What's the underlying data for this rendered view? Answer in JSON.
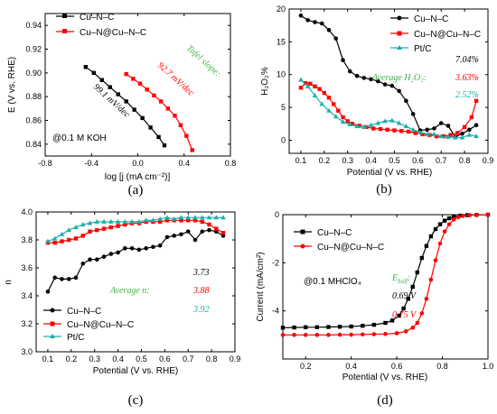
{
  "chart_data": [
    {
      "type": "line",
      "panel": "(a)",
      "xlabel": "log [j (mA cm⁻²)]",
      "ylabel": "E (V vs. RHE)",
      "xlim": [
        -0.8,
        0.8
      ],
      "ylim": [
        0.83,
        0.95
      ],
      "xticks": [
        "-0.8",
        "-0.4",
        "0.0",
        "0.4",
        "0.8"
      ],
      "yticks": [
        "0.84",
        "0.86",
        "0.88",
        "0.90",
        "0.92",
        "0.94"
      ],
      "annotation": "@0.1 M KOH",
      "tafel_label": "Tafel slope:",
      "series": [
        {
          "name": "Cu–N–C",
          "color": "#000000",
          "marker": "square",
          "slope_label": "99.1 mV/dec",
          "x": [
            -0.45,
            -0.38,
            -0.31,
            -0.24,
            -0.17,
            -0.1,
            -0.03,
            0.04,
            0.11,
            0.18,
            0.23
          ],
          "y": [
            0.905,
            0.9,
            0.894,
            0.888,
            0.882,
            0.876,
            0.869,
            0.862,
            0.854,
            0.846,
            0.839
          ]
        },
        {
          "name": "Cu–N@Cu–N–C",
          "color": "#ff0000",
          "marker": "square",
          "slope_label": "92.7 mV/dec",
          "x": [
            -0.1,
            -0.04,
            0.02,
            0.08,
            0.14,
            0.2,
            0.26,
            0.32,
            0.37,
            0.42,
            0.47
          ],
          "y": [
            0.899,
            0.895,
            0.891,
            0.886,
            0.881,
            0.876,
            0.87,
            0.864,
            0.856,
            0.847,
            0.835
          ]
        }
      ]
    },
    {
      "type": "line",
      "panel": "(b)",
      "xlabel": "Potential (V vs. RHE)",
      "ylabel": "H₂O₂%",
      "xlim": [
        0.05,
        0.9
      ],
      "ylim": [
        -2,
        20
      ],
      "xticks": [
        "0.1",
        "0.2",
        "0.3",
        "0.4",
        "0.5",
        "0.6",
        "0.7",
        "0.8",
        "0.9"
      ],
      "yticks": [
        "0",
        "5",
        "10",
        "15",
        "20"
      ],
      "avg_label": "Average H₂O₂:",
      "series": [
        {
          "name": "Cu–N–C",
          "color": "#000000",
          "marker": "circle",
          "avg": "7.04%",
          "x": [
            0.1,
            0.13,
            0.16,
            0.19,
            0.22,
            0.25,
            0.28,
            0.31,
            0.34,
            0.37,
            0.4,
            0.43,
            0.46,
            0.49,
            0.52,
            0.55,
            0.58,
            0.61,
            0.64,
            0.67,
            0.7,
            0.73,
            0.76,
            0.79,
            0.82,
            0.85
          ],
          "y": [
            19.0,
            18.3,
            18.0,
            17.8,
            16.8,
            15.5,
            12.2,
            10.5,
            9.8,
            9.5,
            9.3,
            9.0,
            8.5,
            8.3,
            7.5,
            6.0,
            4.0,
            1.5,
            1.6,
            1.8,
            2.6,
            2.2,
            0.5,
            1.0,
            1.6,
            2.3
          ]
        },
        {
          "name": "Cu–N@Cu–N–C",
          "color": "#ff0000",
          "marker": "square",
          "avg": "3.63%",
          "x": [
            0.1,
            0.12,
            0.14,
            0.16,
            0.18,
            0.2,
            0.22,
            0.24,
            0.26,
            0.28,
            0.3,
            0.32,
            0.35,
            0.38,
            0.41,
            0.44,
            0.47,
            0.5,
            0.53,
            0.56,
            0.59,
            0.62,
            0.65,
            0.68,
            0.71,
            0.74,
            0.77,
            0.8,
            0.83,
            0.85
          ],
          "y": [
            8.0,
            8.7,
            8.6,
            8.2,
            7.8,
            7.2,
            6.5,
            5.5,
            4.5,
            3.5,
            2.9,
            2.5,
            2.2,
            2.0,
            1.8,
            1.7,
            1.6,
            1.5,
            1.4,
            1.3,
            1.1,
            0.9,
            0.8,
            0.6,
            0.6,
            0.8,
            1.1,
            2.0,
            3.5,
            6.0
          ]
        },
        {
          "name": "Pt/C",
          "color": "#1ab0a8",
          "marker": "triangle",
          "avg": "2.52%",
          "x": [
            0.1,
            0.13,
            0.16,
            0.19,
            0.22,
            0.25,
            0.28,
            0.31,
            0.34,
            0.37,
            0.4,
            0.43,
            0.46,
            0.49,
            0.52,
            0.55,
            0.58,
            0.61,
            0.64,
            0.67,
            0.7,
            0.73,
            0.76,
            0.79,
            0.82,
            0.85
          ],
          "y": [
            9.2,
            8.2,
            6.8,
            5.5,
            4.5,
            3.6,
            2.8,
            2.4,
            2.1,
            2.0,
            2.3,
            2.6,
            2.9,
            3.0,
            2.6,
            2.1,
            1.6,
            1.2,
            0.9,
            0.9,
            0.6,
            0.5,
            0.4,
            0.4,
            0.8,
            0.6
          ]
        }
      ]
    },
    {
      "type": "line",
      "panel": "(c)",
      "xlabel": "Potential (V vs. RHE)",
      "ylabel": "n",
      "xlim": [
        0.05,
        0.9
      ],
      "ylim": [
        3.0,
        4.0
      ],
      "xticks": [
        "0.1",
        "0.2",
        "0.3",
        "0.4",
        "0.5",
        "0.6",
        "0.7",
        "0.8",
        "0.9"
      ],
      "yticks": [
        "3.0",
        "3.2",
        "3.4",
        "3.6",
        "3.8",
        "4.0"
      ],
      "avg_label": "Average n:",
      "series": [
        {
          "name": "Cu–N–C",
          "color": "#000000",
          "marker": "circle",
          "avg": "3.73",
          "x": [
            0.1,
            0.13,
            0.16,
            0.19,
            0.22,
            0.25,
            0.28,
            0.31,
            0.34,
            0.37,
            0.4,
            0.43,
            0.46,
            0.49,
            0.52,
            0.55,
            0.58,
            0.61,
            0.64,
            0.67,
            0.7,
            0.73,
            0.76,
            0.79,
            0.82,
            0.85
          ],
          "y": [
            3.43,
            3.53,
            3.52,
            3.52,
            3.53,
            3.63,
            3.66,
            3.66,
            3.68,
            3.7,
            3.71,
            3.74,
            3.74,
            3.73,
            3.74,
            3.75,
            3.76,
            3.82,
            3.83,
            3.84,
            3.86,
            3.8,
            3.86,
            3.87,
            3.86,
            3.83
          ]
        },
        {
          "name": "Cu–N@Cu–N–C",
          "color": "#ff0000",
          "marker": "square",
          "avg": "3.88",
          "x": [
            0.1,
            0.13,
            0.16,
            0.19,
            0.22,
            0.25,
            0.28,
            0.31,
            0.34,
            0.37,
            0.4,
            0.43,
            0.46,
            0.49,
            0.52,
            0.55,
            0.58,
            0.61,
            0.64,
            0.67,
            0.7,
            0.73,
            0.76,
            0.79,
            0.82,
            0.85
          ],
          "y": [
            3.78,
            3.78,
            3.79,
            3.8,
            3.81,
            3.83,
            3.86,
            3.87,
            3.88,
            3.89,
            3.9,
            3.91,
            3.92,
            3.92,
            3.93,
            3.93,
            3.93,
            3.94,
            3.94,
            3.94,
            3.94,
            3.94,
            3.93,
            3.91,
            3.88,
            3.85
          ]
        },
        {
          "name": "Pt/C",
          "color": "#1ab0a8",
          "marker": "triangle",
          "avg": "3.92",
          "x": [
            0.1,
            0.13,
            0.16,
            0.19,
            0.22,
            0.25,
            0.28,
            0.31,
            0.34,
            0.37,
            0.4,
            0.43,
            0.46,
            0.49,
            0.52,
            0.55,
            0.58,
            0.61,
            0.64,
            0.67,
            0.7,
            0.73,
            0.76,
            0.79,
            0.82,
            0.85
          ],
          "y": [
            3.79,
            3.81,
            3.84,
            3.87,
            3.89,
            3.91,
            3.92,
            3.93,
            3.93,
            3.93,
            3.93,
            3.93,
            3.93,
            3.93,
            3.94,
            3.94,
            3.95,
            3.96,
            3.95,
            3.96,
            3.96,
            3.96,
            3.96,
            3.96,
            3.96,
            3.96
          ]
        }
      ]
    },
    {
      "type": "line",
      "panel": "(d)",
      "xlabel": "Potential (V vs. RHE)",
      "ylabel": "Current (mA/cm²)",
      "xlim": [
        0.1,
        1.0
      ],
      "ylim": [
        -6,
        0
      ],
      "xticks": [
        "0.2",
        "0.4",
        "0.6",
        "0.8",
        "1.0"
      ],
      "yticks": [
        "0",
        "-2",
        "-4"
      ],
      "annotation": "@0.1 MHClO₄",
      "ehalf_label": "E",
      "ehalf_sub": "half",
      "series": [
        {
          "name": "Cu–N–C",
          "color": "#000000",
          "marker": "square",
          "ehalf": "0.69 V",
          "x": [
            0.1,
            0.15,
            0.2,
            0.25,
            0.3,
            0.35,
            0.4,
            0.45,
            0.5,
            0.55,
            0.58,
            0.61,
            0.63,
            0.65,
            0.67,
            0.69,
            0.71,
            0.73,
            0.75,
            0.77,
            0.79,
            0.81,
            0.83,
            0.85,
            0.88,
            0.91,
            0.95,
            1.0
          ],
          "y": [
            -4.7,
            -4.69,
            -4.68,
            -4.68,
            -4.67,
            -4.66,
            -4.65,
            -4.62,
            -4.58,
            -4.5,
            -4.4,
            -4.2,
            -3.9,
            -3.5,
            -3.0,
            -2.4,
            -1.8,
            -1.3,
            -0.9,
            -0.6,
            -0.4,
            -0.25,
            -0.15,
            -0.08,
            -0.04,
            -0.02,
            -0.01,
            0.0
          ]
        },
        {
          "name": "Cu–N@Cu–N–C",
          "color": "#ff0000",
          "marker": "circle",
          "ehalf": "0.75 V",
          "x": [
            0.1,
            0.15,
            0.2,
            0.25,
            0.3,
            0.35,
            0.4,
            0.45,
            0.5,
            0.55,
            0.6,
            0.64,
            0.67,
            0.69,
            0.71,
            0.73,
            0.75,
            0.77,
            0.79,
            0.81,
            0.83,
            0.85,
            0.87,
            0.89,
            0.92,
            0.95,
            1.0
          ],
          "y": [
            -5.0,
            -5.0,
            -5.0,
            -5.0,
            -5.0,
            -4.99,
            -4.99,
            -4.98,
            -4.97,
            -4.96,
            -4.93,
            -4.85,
            -4.7,
            -4.5,
            -4.1,
            -3.5,
            -2.7,
            -1.9,
            -1.2,
            -0.7,
            -0.4,
            -0.2,
            -0.1,
            -0.05,
            -0.02,
            -0.01,
            0.0
          ]
        }
      ]
    }
  ]
}
